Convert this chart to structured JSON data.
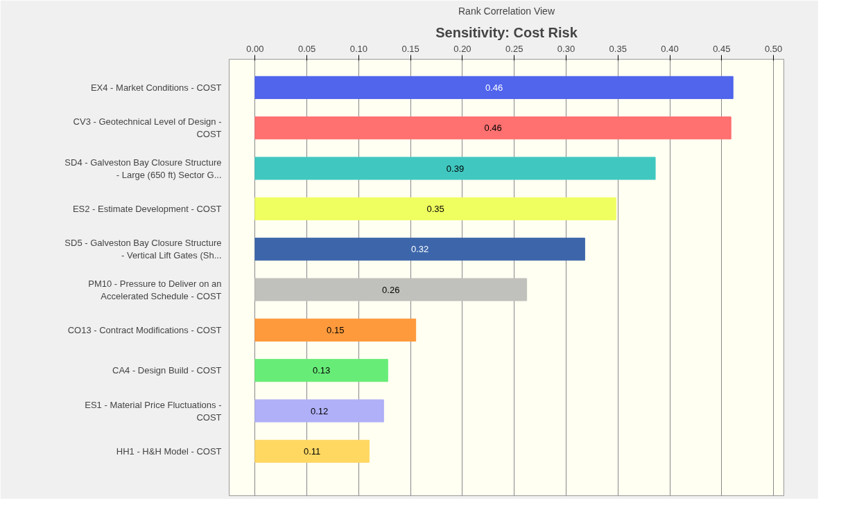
{
  "chart_data": {
    "type": "bar",
    "orientation": "horizontal",
    "title": "Sensitivity: Cost Risk",
    "subtitle": "Rank Correlation View",
    "categories": [
      "EX4 - Market Conditions - COST",
      "CV3 - Geotechnical Level of Design - COST",
      "SD4 - Galveston Bay Closure Structure - Large (650 ft) Sector G...",
      "ES2 - Estimate Development - COST",
      "SD5 - Galveston Bay Closure Structure - Vertical Lift Gates (Sh...",
      "PM10 - Pressure to Deliver on an Accelerated Schedule - COST",
      "CO13 - Contract Modifications - COST",
      "CA4 - Design Build - COST",
      "ES1 - Material Price Fluctuations - COST",
      "HH1 - H&H Model - COST"
    ],
    "values": [
      0.461,
      0.459,
      0.386,
      0.348,
      0.318,
      0.262,
      0.155,
      0.128,
      0.124,
      0.11
    ],
    "value_labels": [
      "0.46",
      "0.46",
      "0.39",
      "0.35",
      "0.32",
      "0.26",
      "0.15",
      "0.13",
      "0.12",
      "0.11"
    ],
    "colors": [
      "#5064ec",
      "#ff7070",
      "#40c8c0",
      "#f0ff60",
      "#3d66aa",
      "#c0c0bc",
      "#ff9a3c",
      "#68ec78",
      "#b0b0f8",
      "#ffd862"
    ],
    "xlim": [
      -0.025,
      0.51
    ],
    "xticks": [
      {
        "value": 0,
        "label": "0.00"
      },
      {
        "value": 0.05,
        "label": "0.05"
      },
      {
        "value": 0.1,
        "label": "0.10"
      },
      {
        "value": 0.15,
        "label": "0.15"
      },
      {
        "value": 0.2,
        "label": "0.20"
      },
      {
        "value": 0.25,
        "label": "0.25"
      },
      {
        "value": 0.3,
        "label": "0.30"
      },
      {
        "value": 0.35,
        "label": "0.35"
      },
      {
        "value": 0.4,
        "label": "0.40"
      },
      {
        "value": 0.45,
        "label": "0.45"
      },
      {
        "value": 0.5,
        "label": "0.50"
      }
    ],
    "grid": "x"
  }
}
